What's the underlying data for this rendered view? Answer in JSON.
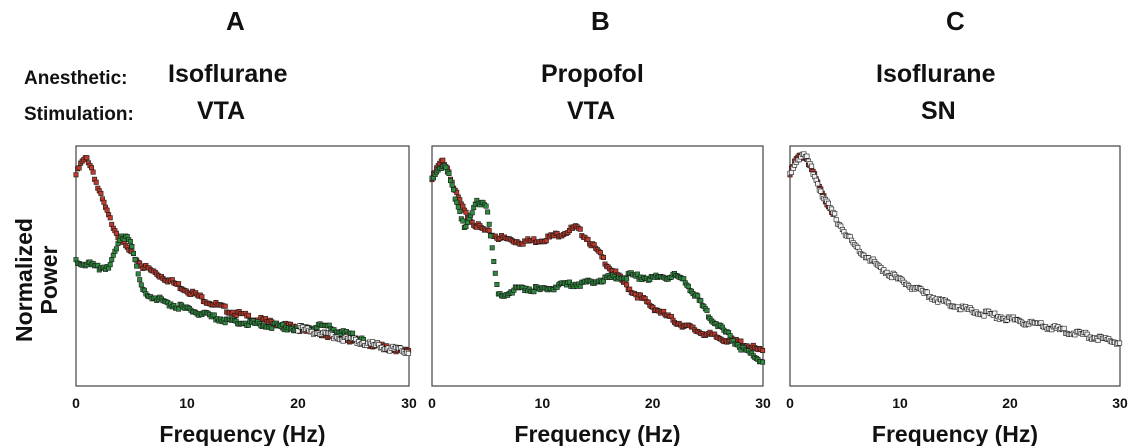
{
  "header": {
    "row_labels": {
      "anesthetic": "Anesthetic:",
      "stimulation": "Stimulation:"
    },
    "panels": [
      {
        "letter": "A",
        "anesthetic": "Isoflurane",
        "stimulation": "VTA"
      },
      {
        "letter": "B",
        "anesthetic": "Propofol",
        "stimulation": "VTA"
      },
      {
        "letter": "C",
        "anesthetic": "Isoflurane",
        "stimulation": "SN"
      }
    ]
  },
  "ylabel_line1": "Normalized",
  "ylabel_line2": "Power",
  "colors": {
    "red": "#c0392b",
    "green": "#2e8b3e",
    "white": "#f2f2f2",
    "edge": "#1a1a1a"
  },
  "chart_data": [
    {
      "type": "scatter",
      "xlabel": "Frequency (Hz)",
      "ylabel": "Normalized Power",
      "xlim": [
        0,
        30
      ],
      "ylim": [
        0,
        1
      ],
      "xticks": [
        0,
        10,
        20,
        30
      ],
      "grid": false,
      "series": [
        {
          "color": "red",
          "x": [
            0,
            0.5,
            1,
            1.5,
            2,
            3,
            4,
            5,
            6,
            8,
            10,
            12,
            14,
            16,
            18,
            20,
            22,
            24,
            26,
            28,
            30
          ],
          "y": [
            0.88,
            0.93,
            0.95,
            0.9,
            0.82,
            0.7,
            0.61,
            0.55,
            0.5,
            0.45,
            0.4,
            0.35,
            0.31,
            0.28,
            0.26,
            0.24,
            0.22,
            0.2,
            0.18,
            0.16,
            0.14
          ]
        },
        {
          "color": "green",
          "x": [
            0,
            1,
            2,
            3,
            3.5,
            4,
            4.5,
            5,
            5.5,
            6,
            7,
            8,
            10,
            12,
            14,
            16,
            18,
            20,
            22,
            23,
            24,
            26
          ],
          "y": [
            0.52,
            0.51,
            0.49,
            0.5,
            0.55,
            0.61,
            0.63,
            0.6,
            0.48,
            0.4,
            0.37,
            0.35,
            0.32,
            0.29,
            0.27,
            0.26,
            0.25,
            0.24,
            0.25,
            0.24,
            0.22,
            0.2
          ]
        },
        {
          "color": "white",
          "x": [
            20,
            22,
            24,
            26,
            28,
            30
          ],
          "y": [
            0.24,
            0.22,
            0.2,
            0.18,
            0.16,
            0.14
          ]
        }
      ]
    },
    {
      "type": "scatter",
      "xlabel": "Frequency (Hz)",
      "ylabel": "Normalized Power",
      "xlim": [
        0,
        30
      ],
      "ylim": [
        0,
        1
      ],
      "xticks": [
        0,
        10,
        20,
        30
      ],
      "grid": false,
      "series": [
        {
          "color": "red",
          "x": [
            0,
            0.5,
            1,
            1.5,
            2,
            3,
            4,
            5,
            6,
            7,
            8,
            10,
            12,
            13,
            14,
            16,
            18,
            20,
            22,
            24,
            26,
            28,
            30
          ],
          "y": [
            0.86,
            0.91,
            0.94,
            0.9,
            0.82,
            0.72,
            0.67,
            0.64,
            0.62,
            0.61,
            0.6,
            0.61,
            0.64,
            0.66,
            0.62,
            0.5,
            0.4,
            0.33,
            0.27,
            0.23,
            0.2,
            0.18,
            0.14
          ]
        },
        {
          "color": "green",
          "x": [
            0,
            0.5,
            1,
            1.5,
            2,
            3,
            3.5,
            4,
            4.5,
            5,
            5.5,
            6,
            7,
            8,
            10,
            12,
            14,
            16,
            18,
            20,
            22,
            23,
            24,
            25,
            26,
            28,
            30
          ],
          "y": [
            0.86,
            0.91,
            0.92,
            0.88,
            0.8,
            0.66,
            0.7,
            0.76,
            0.77,
            0.75,
            0.55,
            0.38,
            0.39,
            0.41,
            0.4,
            0.42,
            0.43,
            0.45,
            0.46,
            0.45,
            0.46,
            0.43,
            0.37,
            0.3,
            0.25,
            0.16,
            0.1
          ]
        }
      ]
    },
    {
      "type": "scatter",
      "xlabel": "Frequency (Hz)",
      "ylabel": "Normalized Power",
      "xlim": [
        0,
        30
      ],
      "ylim": [
        0,
        1
      ],
      "xticks": [
        0,
        10,
        20,
        30
      ],
      "grid": false,
      "series": [
        {
          "color": "red",
          "x": [
            0,
            0.5,
            1,
            1.5,
            2,
            3,
            4
          ],
          "y": [
            0.88,
            0.94,
            0.96,
            0.95,
            0.9,
            0.79,
            0.72
          ]
        },
        {
          "color": "white",
          "x": [
            0,
            0.5,
            1,
            1.5,
            2,
            3,
            4,
            5,
            6,
            8,
            10,
            12,
            14,
            16,
            18,
            20,
            22,
            24,
            26,
            28,
            30
          ],
          "y": [
            0.88,
            0.94,
            0.96,
            0.95,
            0.9,
            0.79,
            0.71,
            0.64,
            0.58,
            0.5,
            0.44,
            0.39,
            0.35,
            0.32,
            0.3,
            0.28,
            0.26,
            0.24,
            0.22,
            0.2,
            0.18
          ]
        }
      ]
    }
  ]
}
